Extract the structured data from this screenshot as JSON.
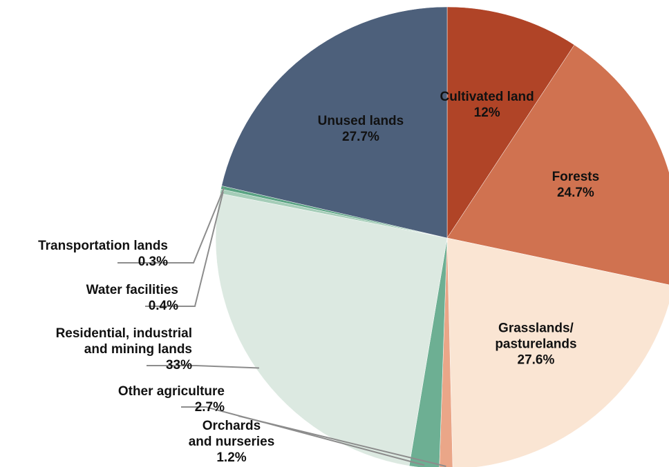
{
  "chart_data": {
    "type": "pie",
    "categories": [
      [
        "Cultivated land"
      ],
      [
        "Forests"
      ],
      [
        "Grasslands/",
        "pasturelands"
      ],
      [
        "Orchards",
        "and nurseries"
      ],
      [
        "Other agriculture"
      ],
      [
        "Residential, industrial",
        "and mining lands"
      ],
      [
        "Water facilities"
      ],
      [
        "Transportation lands"
      ],
      [
        "Unused lands"
      ]
    ],
    "values": [
      12,
      24.7,
      27.6,
      1.2,
      2.7,
      33,
      0.4,
      0.3,
      27.7
    ],
    "value_labels": [
      "12%",
      "24.7%",
      "27.6%",
      "1.2%",
      "2.7%",
      "33%",
      "0.4%",
      "0.3%",
      "27.7%"
    ],
    "colors": [
      "#b04427",
      "#d07250",
      "#fae5d3",
      "#eaa688",
      "#6daf93",
      "#dce9e1",
      "#a5cdb8",
      "#5aa383",
      "#4d607b"
    ]
  }
}
